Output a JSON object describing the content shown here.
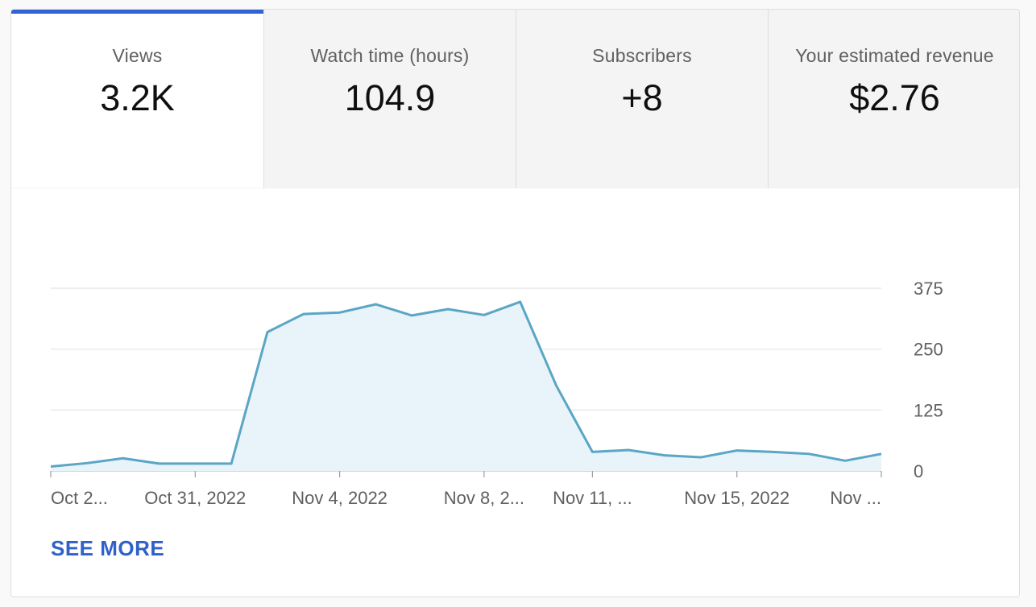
{
  "tabs": [
    {
      "label": "Views",
      "value": "3.2K",
      "active": true
    },
    {
      "label": "Watch time (hours)",
      "value": "104.9",
      "active": false
    },
    {
      "label": "Subscribers",
      "value": "+8",
      "active": false
    },
    {
      "label": "Your estimated revenue",
      "value": "$2.76",
      "active": false
    }
  ],
  "colors": {
    "accent": "#3163d4",
    "line": "#5aa6c4",
    "fill": "#e9f3fa",
    "grid": "#e2e2e2",
    "link": "#2f61c9"
  },
  "see_more_label": "SEE MORE",
  "chart_data": {
    "type": "area",
    "x": [
      "Oct 27, 2022",
      "Oct 28, 2022",
      "Oct 29, 2022",
      "Oct 30, 2022",
      "Oct 31, 2022",
      "Nov 1, 2022",
      "Nov 2, 2022",
      "Nov 3, 2022",
      "Nov 4, 2022",
      "Nov 5, 2022",
      "Nov 6, 2022",
      "Nov 7, 2022",
      "Nov 8, 2022",
      "Nov 9, 2022",
      "Nov 10, 2022",
      "Nov 11, 2022",
      "Nov 12, 2022",
      "Nov 13, 2022",
      "Nov 14, 2022",
      "Nov 15, 2022",
      "Nov 16, 2022",
      "Nov 17, 2022",
      "Nov 18, 2022",
      "Nov 19, 2022"
    ],
    "values": [
      9,
      16,
      26,
      15,
      15,
      15,
      285,
      322,
      325,
      342,
      319,
      332,
      320,
      347,
      175,
      39,
      43,
      32,
      28,
      42,
      39,
      35,
      21,
      35
    ],
    "ylim": [
      0,
      375
    ],
    "yticks": [
      "0",
      "125",
      "250",
      "375"
    ],
    "xtick_labels": [
      {
        "label": "Oct 2...",
        "i": 0
      },
      {
        "label": "Oct 31, 2022",
        "i": 4
      },
      {
        "label": "Nov 4, 2022",
        "i": 8
      },
      {
        "label": "Nov 8, 2...",
        "i": 12
      },
      {
        "label": "Nov 11, ...",
        "i": 15
      },
      {
        "label": "Nov 15, 2022",
        "i": 19
      },
      {
        "label": "Nov ...",
        "i": 23
      }
    ],
    "grid": true
  }
}
